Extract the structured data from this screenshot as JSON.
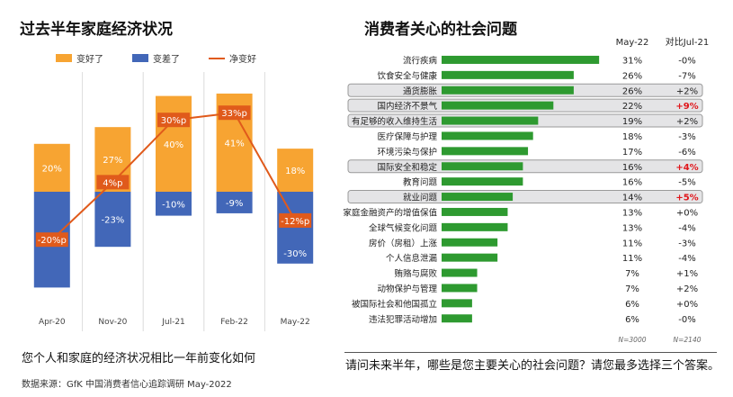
{
  "left": {
    "title": "过去半年家庭经济状况",
    "question": "您个人和家庭的经济状况相比一年前变化如何",
    "source": "数据来源：GfK 中国消费者信心追踪调研 May-2022",
    "chart_data": {
      "type": "bar",
      "categories": [
        "Apr-20",
        "Nov-20",
        "Jul-21",
        "Feb-22",
        "May-22"
      ],
      "series": [
        {
          "name": "变好了",
          "values": [
            20,
            27,
            40,
            41,
            18
          ],
          "labels": [
            "20%",
            "27%",
            "40%",
            "41%",
            "18%"
          ]
        },
        {
          "name": "变差了",
          "values": [
            -40,
            -23,
            -10,
            -9,
            -30
          ],
          "labels": [
            "-40%",
            "-23%",
            "-10%",
            "-9%",
            "-30%"
          ]
        },
        {
          "name": "净变好",
          "values": [
            -20,
            4,
            30,
            33,
            -12
          ],
          "labels": [
            "-20%p",
            "4%p",
            "30%p",
            "33%p",
            "-12%p"
          ]
        }
      ],
      "colors": {
        "better": "#f7a432",
        "worse": "#4267b8",
        "net": "#e05a1b"
      },
      "ylim": [
        -45,
        45
      ]
    }
  },
  "right": {
    "title": "消费者关心的社会问题",
    "question": "请问未来半年，哪些是您主要关心的社会问题？请您最多选择三个答案。",
    "col_current": "May-22",
    "col_change": "对比Jul-21",
    "n_current": "N=3000",
    "n_change": "N=2140",
    "chart_data": {
      "type": "bar",
      "orientation": "horizontal",
      "categories": [
        "流行疾病",
        "饮食安全与健康",
        "通货膨胀",
        "国内经济不景气",
        "有足够的收入维持生活",
        "医疗保障与护理",
        "环境污染与保护",
        "国际安全和稳定",
        "教育问题",
        "就业问题",
        "家庭金融资产的增值保值",
        "全球气候变化问题",
        "房价（房租）上涨",
        "个人信息泄漏",
        "贿赂与腐败",
        "动物保护与管理",
        "被国际社会和他国孤立",
        "违法犯罪活动增加"
      ],
      "values": [
        31,
        26,
        26,
        22,
        19,
        18,
        17,
        16,
        16,
        14,
        13,
        13,
        11,
        11,
        7,
        7,
        6,
        6
      ],
      "value_labels": [
        "31%",
        "26%",
        "26%",
        "22%",
        "19%",
        "18%",
        "17%",
        "16%",
        "16%",
        "14%",
        "13%",
        "13%",
        "11%",
        "11%",
        "7%",
        "7%",
        "6%",
        "6%"
      ],
      "change_labels": [
        "-0%",
        "-7%",
        "+2%",
        "+9%",
        "+2%",
        "-3%",
        "-6%",
        "+4%",
        "-5%",
        "+5%",
        "+0%",
        "-4%",
        "-3%",
        "-4%",
        "+1%",
        "+2%",
        "+0%",
        "-0%"
      ],
      "change_red": [
        false,
        false,
        false,
        true,
        false,
        false,
        false,
        true,
        false,
        true,
        false,
        false,
        false,
        false,
        false,
        false,
        false,
        false
      ],
      "highlighted": [
        false,
        false,
        true,
        true,
        true,
        false,
        false,
        true,
        false,
        true,
        false,
        false,
        false,
        false,
        false,
        false,
        false,
        false
      ],
      "xlim": [
        0,
        32
      ],
      "bar_color": "#2e9a30"
    }
  }
}
